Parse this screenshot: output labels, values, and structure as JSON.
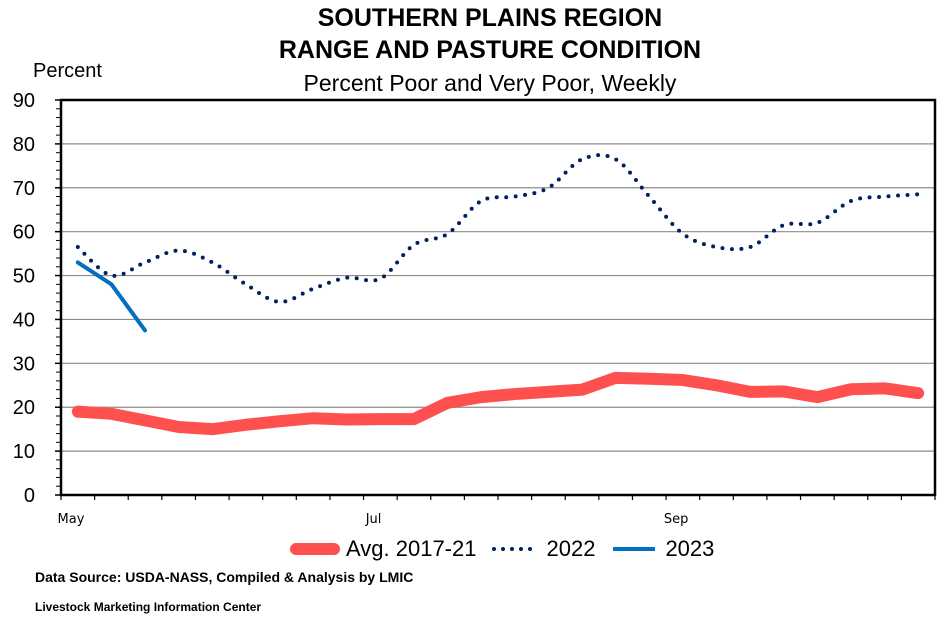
{
  "chart_data": {
    "type": "line",
    "title": "SOUTHERN PLAINS REGION",
    "title2": "RANGE AND PASTURE CONDITION",
    "subtitle": "Percent Poor and Very Poor, Weekly",
    "ylabel": "Percent",
    "ylim": [
      0,
      90
    ],
    "yticks": [
      "0",
      "10",
      "20",
      "30",
      "40",
      "50",
      "60",
      "70",
      "80",
      "90"
    ],
    "xtick_labels": [
      "May",
      "Jul",
      "Sep"
    ],
    "grid": true,
    "legend_position": "bottom",
    "series": [
      {
        "name": "Avg. 2017-21",
        "color": "#ff5050",
        "style": "thick",
        "values": [
          19,
          18.5,
          17,
          15.5,
          15,
          16,
          16.8,
          17.5,
          17.2,
          17.3,
          17.3,
          21,
          22.3,
          23,
          23.5,
          24,
          26.7,
          26.5,
          26.2,
          25,
          23.5,
          23.6,
          22.3,
          24.1,
          24.3,
          23.2
        ]
      },
      {
        "name": "2022",
        "color": "#002060",
        "style": "dotted",
        "values": [
          56.5,
          50,
          53,
          55.7,
          53,
          48,
          44,
          47,
          49.5,
          49.3,
          57,
          59.5,
          67,
          68,
          70,
          76.5,
          76.5,
          68,
          59.5,
          56.5,
          56.5,
          61.5,
          62,
          67,
          68,
          68.5
        ]
      },
      {
        "name": "2023",
        "color": "#0070c0",
        "style": "solid",
        "values": [
          53,
          48,
          37.5
        ]
      }
    ]
  },
  "footer": {
    "source": "Data Source:  USDA-NASS, Compiled & Analysis by LMIC",
    "org": "Livestock Marketing Information Center"
  }
}
